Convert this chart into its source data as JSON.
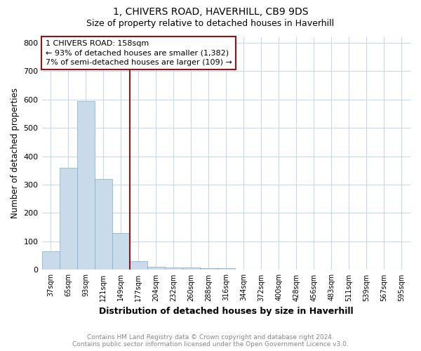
{
  "title": "1, CHIVERS ROAD, HAVERHILL, CB9 9DS",
  "subtitle": "Size of property relative to detached houses in Haverhill",
  "xlabel": "Distribution of detached houses by size in Haverhill",
  "ylabel": "Number of detached properties",
  "bins": [
    "37sqm",
    "65sqm",
    "93sqm",
    "121sqm",
    "149sqm",
    "177sqm",
    "204sqm",
    "232sqm",
    "260sqm",
    "288sqm",
    "316sqm",
    "344sqm",
    "372sqm",
    "400sqm",
    "428sqm",
    "456sqm",
    "483sqm",
    "511sqm",
    "539sqm",
    "567sqm",
    "595sqm"
  ],
  "values": [
    65,
    360,
    595,
    320,
    130,
    30,
    10,
    8,
    8,
    5,
    5,
    0,
    0,
    0,
    0,
    0,
    0,
    0,
    0,
    0,
    0
  ],
  "bar_color": "#c9daea",
  "bar_edge_color": "#7aafc8",
  "vline_color": "#9b1010",
  "annotation_text_line1": "1 CHIVERS ROAD: 158sqm",
  "annotation_text_line2": "← 93% of detached houses are smaller (1,382)",
  "annotation_text_line3": "7% of semi-detached houses are larger (109) →",
  "annotation_box_color": "#9b1010",
  "ylim": [
    0,
    820
  ],
  "yticks": [
    0,
    100,
    200,
    300,
    400,
    500,
    600,
    700,
    800
  ],
  "footer_line1": "Contains HM Land Registry data © Crown copyright and database right 2024.",
  "footer_line2": "Contains public sector information licensed under the Open Government Licence v3.0.",
  "background_color": "#ffffff",
  "grid_color": "#c8d8ea"
}
